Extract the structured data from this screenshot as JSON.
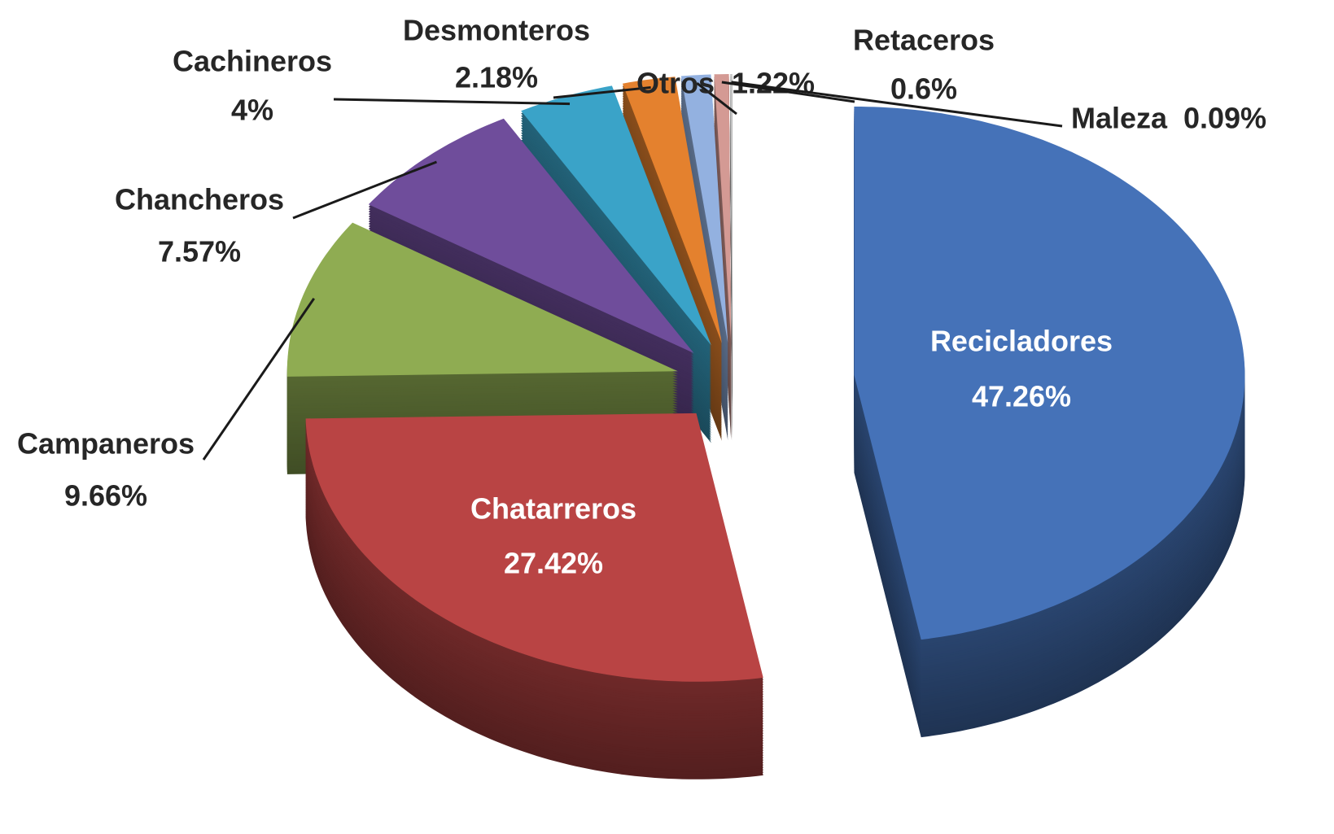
{
  "chart_data": {
    "type": "pie",
    "categories": [
      "Recicladores",
      "Chatarreros",
      "Campaneros",
      "Chancheros",
      "Cachineros",
      "Desmonteros",
      "Otros",
      "Retaceros",
      "Maleza"
    ],
    "values": [
      47.26,
      27.42,
      9.66,
      7.57,
      4,
      2.18,
      1.22,
      0.6,
      0.09
    ],
    "value_labels": [
      "47.26%",
      "27.42%",
      "9.66%",
      "7.57%",
      "4%",
      "2.18%",
      "1.22%",
      "0.6%",
      "0.09%"
    ],
    "colors": [
      "#4572b8",
      "#b94444",
      "#8fac52",
      "#6f4d9b",
      "#3aa3c8",
      "#e4812e",
      "#93b1e0",
      "#d49a94",
      "#c8c8c8"
    ]
  }
}
